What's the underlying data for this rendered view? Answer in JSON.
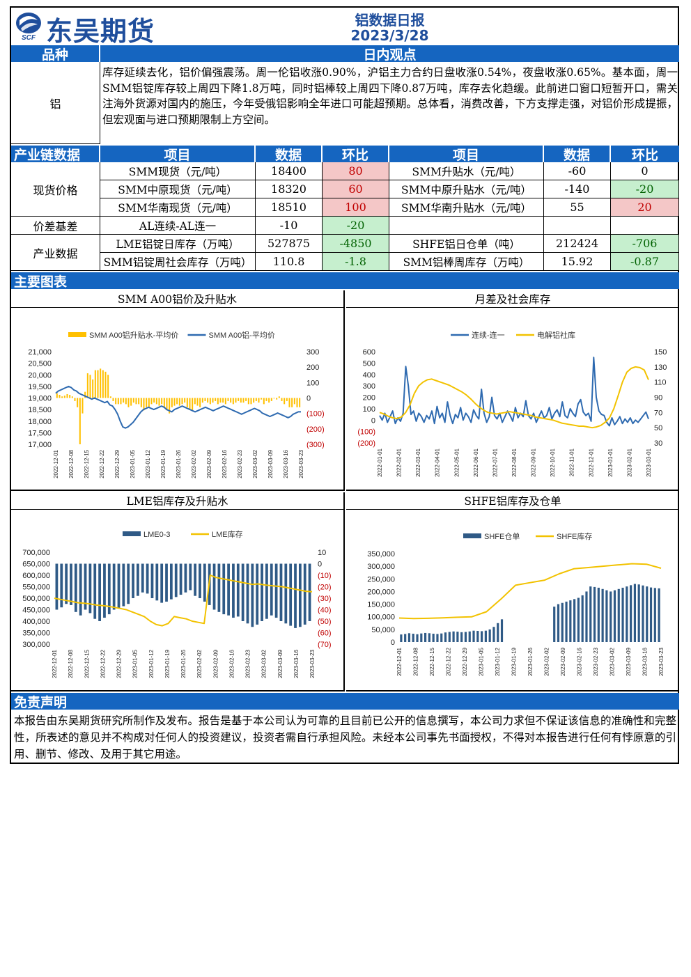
{
  "header": {
    "company": "东吴期货",
    "logo_abbr": "SCF",
    "report_title": "铝数据日报",
    "date": "2023/3/28"
  },
  "view_section": {
    "col1_header": "品种",
    "col2_header": "日内观点",
    "variety": "铝",
    "text": "库存延续去化，铝价偏强震荡。周一伦铝收涨0.90%，沪铝主力合约日盘收涨0.54%，夜盘收涨0.65%。基本面，周一SMM铝锭库存较上周四下降1.8万吨，同时铝棒较上周四下降0.87万吨，库存去化趋缓。此前进口窗口短暂开口，需关注海外货源对国内的施压，今年受俄铝影响全年进口可能超预期。总体看，消费改善，下方支撑走强，对铝价形成提振，但宏观面与进口预期限制上方空间。"
  },
  "chain_table": {
    "headers": [
      "产业链数据",
      "项目",
      "数据",
      "环比",
      "项目",
      "数据",
      "环比"
    ],
    "groups": [
      {
        "name": "现货价格",
        "rows": [
          {
            "item1": "SMM现货（元/吨）",
            "val1": "18400",
            "chg1": "80",
            "c1": "pink",
            "item2": "SMM升贴水（元/吨）",
            "val2": "-60",
            "chg2": "0",
            "c2": ""
          },
          {
            "item1": "SMM中原现货（元/吨）",
            "val1": "18320",
            "chg1": "60",
            "c1": "pink",
            "item2": "SMM中原升贴水（元/吨）",
            "val2": "-140",
            "chg2": "-20",
            "c2": "green"
          },
          {
            "item1": "SMM华南现货（元/吨）",
            "val1": "18510",
            "chg1": "100",
            "c1": "pink",
            "item2": "SMM华南升贴水（元/吨）",
            "val2": "55",
            "chg2": "20",
            "c2": "pink"
          }
        ]
      },
      {
        "name": "价差基差",
        "rows": [
          {
            "item1": "AL连续-AL连一",
            "val1": "-10",
            "chg1": "-20",
            "c1": "green",
            "item2": "",
            "val2": "",
            "chg2": "",
            "c2": ""
          }
        ]
      },
      {
        "name": "产业数据",
        "rows": [
          {
            "item1": "LME铝锭日库存（万吨）",
            "val1": "527875",
            "chg1": "-4850",
            "c1": "green",
            "item2": "SHFE铝日仓单（吨）",
            "val2": "212424",
            "chg2": "-706",
            "c2": "green"
          },
          {
            "item1": "SMM铝锭周社会库存（万吨）",
            "val1": "110.8",
            "chg1": "-1.8",
            "c1": "green",
            "item2": "SMM铝棒周库存（万吨）",
            "val2": "15.92",
            "chg2": "-0.87",
            "c2": "green"
          }
        ]
      }
    ]
  },
  "charts_section": {
    "title": "主要图表"
  },
  "disclaimer": {
    "title": "免责声明",
    "text": "本报告由东吴期货研究所制作及发布。报告是基于本公司认为可靠的且目前已公开的信息撰写，本公司力求但不保证该信息的准确性和完整性，所表述的意见并不构成对任何人的投资建议，投资者需自行承担风险。未经本公司事先书面授权，不得对本报告进行任何有悖原意的引用、删节、修改、及用于其它用途。"
  },
  "chart_data": [
    {
      "type": "bar",
      "title": "SMM A00铝价及升贴水",
      "series": [
        {
          "name": "SMM A00铝升贴水-平均价",
          "kind": "bar",
          "axis": "right",
          "color": "#ffc000",
          "values": [
            30,
            20,
            10,
            15,
            25,
            20,
            10,
            -20,
            -60,
            -300,
            -100,
            40,
            160,
            150,
            120,
            180,
            180,
            190,
            180,
            170,
            150,
            10,
            -20,
            -40,
            -40,
            -40,
            -30,
            -40,
            -60,
            -50,
            -30,
            -40,
            -40,
            -60,
            -80,
            -60,
            -60,
            -40,
            -30,
            -40,
            -50,
            -40,
            -60,
            -80,
            -100,
            -60,
            -50,
            -40,
            -50,
            -40,
            -30,
            -60,
            -70,
            -80,
            -40,
            -50,
            -60,
            -30,
            -20,
            -30,
            -40,
            -30,
            -20,
            -40,
            -30,
            -30,
            -40,
            -20,
            -30,
            -40,
            -30,
            -20,
            -30,
            -30,
            -20,
            -40,
            -40,
            -30,
            -20,
            -30,
            -10,
            -40,
            -20,
            -30,
            -20,
            0,
            -10,
            10,
            -20,
            -40,
            -20,
            -60,
            -60,
            -40,
            -60,
            -60
          ]
        },
        {
          "name": "SMM A00铝-平均价",
          "kind": "line",
          "axis": "left",
          "color": "#2e6ab0",
          "values": [
            19200,
            19300,
            19350,
            19400,
            19450,
            19500,
            19450,
            19350,
            19300,
            19200,
            19150,
            19100,
            19050,
            19000,
            18950,
            19000,
            18950,
            18900,
            18850,
            18800,
            18850,
            18700,
            18650,
            18500,
            18300,
            18000,
            17750,
            17700,
            17750,
            17850,
            17950,
            18100,
            18250,
            18400,
            18500,
            18550,
            18600,
            18550,
            18500,
            18550,
            18600,
            18650,
            18600,
            18500,
            18450,
            18400,
            18500,
            18550,
            18600,
            18650,
            18600,
            18550,
            18500,
            18450,
            18400,
            18450,
            18500,
            18550,
            18600,
            18550,
            18500,
            18450,
            18500,
            18550,
            18600,
            18650,
            18600,
            18550,
            18500,
            18450,
            18400,
            18350,
            18300,
            18350,
            18400,
            18450,
            18500,
            18550,
            18500,
            18450,
            18350,
            18300,
            18250,
            18200,
            18250,
            18300,
            18350,
            18300,
            18250,
            18200,
            18150,
            18200,
            18300,
            18350,
            18400,
            18400
          ]
        }
      ],
      "x_ticks": [
        "2022-12-01",
        "2022-12-08",
        "2022-12-15",
        "2022-12-22",
        "2022-12-29",
        "2023-01-05",
        "2023-01-12",
        "2023-01-19",
        "2023-01-26",
        "2023-02-02",
        "2023-02-09",
        "2023-02-16",
        "2023-02-23",
        "2023-03-02",
        "2023-03-09",
        "2023-03-16",
        "2023-03-23"
      ],
      "y_left_ticks": [
        "21,000",
        "20,500",
        "20,000",
        "19,500",
        "19,000",
        "18,500",
        "18,000",
        "17,500",
        "17,000"
      ],
      "y_left_range": [
        17000,
        21000
      ],
      "y_right_ticks": [
        "300",
        "200",
        "100",
        "0",
        "(100)",
        "(200)",
        "(300)"
      ],
      "y_right_range": [
        -300,
        300
      ],
      "legend": "top"
    },
    {
      "type": "line",
      "title": "月差及社会库存",
      "series": [
        {
          "name": "连续-连一",
          "axis": "left",
          "color": "#2e6ab0",
          "values": [
            40,
            0,
            60,
            -20,
            30,
            80,
            -30,
            20,
            -10,
            60,
            470,
            300,
            50,
            80,
            -10,
            60,
            30,
            -20,
            40,
            10,
            80,
            -30,
            120,
            20,
            60,
            -20,
            160,
            40,
            -30,
            50,
            20,
            110,
            0,
            60,
            30,
            -20,
            90,
            40,
            10,
            270,
            60,
            -20,
            30,
            200,
            40,
            10,
            60,
            -20,
            30,
            80,
            40,
            -10,
            110,
            20,
            60,
            30,
            170,
            40,
            10,
            60,
            -20,
            30,
            80,
            20,
            40,
            110,
            10,
            60,
            90,
            30,
            160,
            40,
            20,
            100,
            60,
            30,
            140,
            180,
            70,
            40,
            60,
            -10,
            550,
            200,
            80,
            50,
            40,
            -20,
            -50,
            20,
            -40,
            -10,
            30,
            -30,
            10,
            -20,
            20,
            -30,
            0,
            -20,
            10,
            40,
            70,
            10
          ]
        },
        {
          "name": "电解铝社库",
          "axis": "right",
          "color": "#f2c200",
          "values": [
            70,
            68,
            65,
            63,
            62,
            64,
            70,
            80,
            95,
            105,
            110,
            113,
            114,
            112,
            110,
            108,
            106,
            103,
            100,
            97,
            93,
            88,
            82,
            77,
            73,
            70,
            69,
            68,
            69,
            70,
            71,
            70,
            69,
            68,
            67,
            66,
            64,
            63,
            62,
            61,
            60,
            58,
            56,
            55,
            54,
            53,
            52,
            52,
            51,
            50,
            51,
            53,
            57,
            63,
            75,
            92,
            110,
            123,
            128,
            130,
            129,
            126,
            113
          ]
        }
      ],
      "x_ticks": [
        "2022-01-01",
        "2022-02-01",
        "2022-03-01",
        "2022-04-01",
        "2022-05-01",
        "2022-06-01",
        "2022-07-01",
        "2022-08-01",
        "2022-09-01",
        "2022-10-01",
        "2022-11-01",
        "2022-12-01",
        "2023-01-01",
        "2023-02-01",
        "2023-03-01"
      ],
      "y_left_ticks": [
        "600",
        "500",
        "400",
        "300",
        "200",
        "100",
        "0",
        "(100)",
        "(200)"
      ],
      "y_left_range": [
        -200,
        600
      ],
      "y_right_ticks": [
        "150",
        "130",
        "110",
        "90",
        "70",
        "50",
        "30"
      ],
      "y_right_range": [
        30,
        150
      ],
      "legend": "top"
    },
    {
      "type": "bar",
      "title": "LME铝库存及升贴水",
      "series": [
        {
          "name": "LME0-3",
          "kind": "bar",
          "axis": "right",
          "color": "#2f5a86",
          "values": [
            -40,
            -38,
            -35,
            -36,
            -42,
            -45,
            -40,
            -43,
            -48,
            -50,
            -47,
            -44,
            -40,
            -39,
            -37,
            -35,
            -30,
            -28,
            -25,
            -26,
            -30,
            -32,
            -34,
            -33,
            -31,
            -29,
            -27,
            -25,
            -23,
            -28,
            -30,
            -33,
            -36,
            -40,
            -42,
            -44,
            -45,
            -47,
            -46,
            -50,
            -52,
            -55,
            -53,
            -50,
            -48,
            -45,
            -47,
            -50,
            -52,
            -54,
            -56,
            -55,
            -53,
            -50
          ]
        },
        {
          "name": "LME库存",
          "kind": "line",
          "axis": "left",
          "color": "#f2c200",
          "values": [
            500000,
            495000,
            490000,
            485000,
            480000,
            478000,
            475000,
            470000,
            468000,
            465000,
            460000,
            455000,
            450000,
            440000,
            430000,
            420000,
            400000,
            385000,
            380000,
            390000,
            420000,
            415000,
            410000,
            400000,
            395000,
            390000,
            600000,
            590000,
            585000,
            580000,
            575000,
            570000,
            565000,
            560000,
            562000,
            558000,
            555000,
            552000,
            550000,
            545000,
            540000,
            535000,
            530000,
            527875
          ]
        }
      ],
      "x_ticks": [
        "2022-12-01",
        "2022-12-08",
        "2022-12-15",
        "2022-12-22",
        "2022-12-29",
        "2023-01-05",
        "2023-01-12",
        "2023-01-19",
        "2023-01-26",
        "2023-02-02",
        "2023-02-09",
        "2023-02-16",
        "2023-02-23",
        "2023-03-02",
        "2023-03-09",
        "2023-03-16",
        "2023-03-23"
      ],
      "y_left_ticks": [
        "700,000",
        "650,000",
        "600,000",
        "550,000",
        "500,000",
        "450,000",
        "400,000",
        "350,000",
        "300,000"
      ],
      "y_left_range": [
        300000,
        700000
      ],
      "y_right_ticks": [
        "10",
        "0",
        "(10)",
        "(20)",
        "(30)",
        "(40)",
        "(50)",
        "(60)",
        "(70)"
      ],
      "y_right_range": [
        -70,
        10
      ],
      "legend": "top"
    },
    {
      "type": "bar",
      "title": "SHFE铝库存及仓单",
      "series": [
        {
          "name": "SHFE仓单",
          "kind": "bar",
          "axis": "left",
          "color": "#2f5a86",
          "values": [
            30000,
            32000,
            35000,
            33000,
            31000,
            34000,
            36000,
            35000,
            33000,
            32000,
            34000,
            38000,
            40000,
            42000,
            41000,
            39000,
            40000,
            42000,
            45000,
            44000,
            43000,
            45000,
            50000,
            60000,
            75000,
            90000,
            null,
            null,
            null,
            null,
            null,
            null,
            null,
            null,
            null,
            null,
            null,
            null,
            140000,
            150000,
            155000,
            160000,
            165000,
            170000,
            175000,
            185000,
            200000,
            220000,
            218000,
            215000,
            210000,
            205000,
            200000,
            205000,
            210000,
            215000,
            220000,
            225000,
            230000,
            228000,
            224000,
            220000,
            216000,
            214000,
            212424
          ]
        },
        {
          "name": "SHFE库存",
          "kind": "line",
          "axis": "left",
          "color": "#f2c200",
          "values": [
            95000,
            93000,
            94000,
            96000,
            98000,
            100000,
            120000,
            170000,
            225000,
            235000,
            245000,
            270000,
            290000,
            295000,
            300000,
            305000,
            310000,
            308000,
            292000
          ]
        }
      ],
      "x_ticks": [
        "2022-12-01",
        "2022-12-08",
        "2022-12-15",
        "2022-12-22",
        "2022-12-29",
        "2023-01-05",
        "2023-01-12",
        "2023-01-19",
        "2023-01-26",
        "2023-02-02",
        "2023-02-09",
        "2023-02-16",
        "2023-02-23",
        "2023-03-02",
        "2023-03-09",
        "2023-03-16",
        "2023-03-23"
      ],
      "y_left_ticks": [
        "350,000",
        "300,000",
        "250,000",
        "200,000",
        "150,000",
        "100,000",
        "50,000",
        "0"
      ],
      "y_left_range": [
        0,
        350000
      ],
      "legend": "top"
    }
  ]
}
